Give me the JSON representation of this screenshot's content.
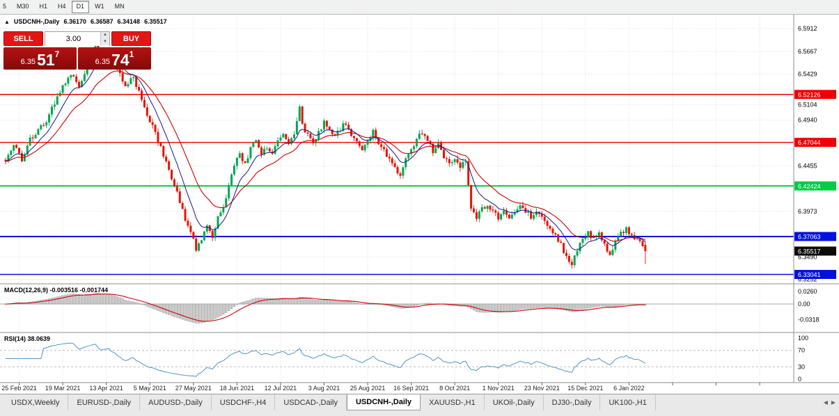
{
  "toolbar": {
    "timeframes": [
      {
        "label": "5",
        "active": false
      },
      {
        "label": "M30",
        "active": false
      },
      {
        "label": "H1",
        "active": false
      },
      {
        "label": "H4",
        "active": false
      },
      {
        "label": "D1",
        "active": true
      },
      {
        "label": "W1",
        "active": false
      },
      {
        "label": "MN",
        "active": false
      }
    ]
  },
  "chart_header": {
    "collapse_icon": "▲",
    "symbol": "USDCNH-,Daily",
    "open": "6.36170",
    "high": "6.36587",
    "low": "6.34148",
    "close": "6.35517"
  },
  "trade_panel": {
    "sell_label": "SELL",
    "buy_label": "BUY",
    "volume": "3.00",
    "sell_price": {
      "small": "6.35",
      "big": "51",
      "sup": "7"
    },
    "buy_price": {
      "small": "6.35",
      "big": "74",
      "sup": "1"
    }
  },
  "indicators": {
    "macd_label": "MACD(12,26,9) -0.003516 -0.001744",
    "rsi_label": "RSI(14) 38.0639"
  },
  "tabs": {
    "items": [
      "USDX,Weekly",
      "EURUSD-,Daily",
      "AUDUSD-,Daily",
      "USDCHF-,H4",
      "USDCAD-,Daily",
      "USDCNH-,Daily",
      "XAUUSD-,H1",
      "UKOil-,Daily",
      "DJ30-,Daily",
      "UK100-,H1"
    ],
    "active_index": 5,
    "scroll_left_icon": "◀",
    "scroll_right_icon": "▶"
  },
  "chart_data": {
    "type": "candlestick",
    "symbol": "USDCNH",
    "timeframe": "Daily",
    "title": "USDCNH-,Daily",
    "price_range": {
      "top": 6.6,
      "bottom": 6.3234
    },
    "candles_n": 236,
    "last_candle": {
      "o": 6.3617,
      "h": 6.36587,
      "l": 6.34148,
      "c": 6.35517
    },
    "price_waypoints": [
      [
        0,
        6.452
      ],
      [
        3,
        6.468
      ],
      [
        6,
        6.452
      ],
      [
        9,
        6.475
      ],
      [
        12,
        6.483
      ],
      [
        15,
        6.492
      ],
      [
        18,
        6.512
      ],
      [
        21,
        6.53
      ],
      [
        24,
        6.543
      ],
      [
        27,
        6.528
      ],
      [
        30,
        6.553
      ],
      [
        33,
        6.572
      ],
      [
        35,
        6.558
      ],
      [
        38,
        6.568
      ],
      [
        41,
        6.548
      ],
      [
        44,
        6.532
      ],
      [
        47,
        6.54
      ],
      [
        50,
        6.514
      ],
      [
        53,
        6.494
      ],
      [
        56,
        6.472
      ],
      [
        59,
        6.45
      ],
      [
        62,
        6.426
      ],
      [
        64,
        6.406
      ],
      [
        66,
        6.39
      ],
      [
        68,
        6.375
      ],
      [
        70,
        6.358
      ],
      [
        72,
        6.366
      ],
      [
        74,
        6.381
      ],
      [
        76,
        6.371
      ],
      [
        78,
        6.39
      ],
      [
        80,
        6.403
      ],
      [
        82,
        6.423
      ],
      [
        84,
        6.446
      ],
      [
        86,
        6.458
      ],
      [
        88,
        6.448
      ],
      [
        90,
        6.463
      ],
      [
        92,
        6.473
      ],
      [
        94,
        6.458
      ],
      [
        96,
        6.466
      ],
      [
        98,
        6.459
      ],
      [
        100,
        6.47
      ],
      [
        102,
        6.478
      ],
      [
        104,
        6.467
      ],
      [
        106,
        6.481
      ],
      [
        108,
        6.509
      ],
      [
        109,
        6.489
      ],
      [
        111,
        6.478
      ],
      [
        113,
        6.467
      ],
      [
        115,
        6.48
      ],
      [
        117,
        6.493
      ],
      [
        119,
        6.484
      ],
      [
        121,
        6.476
      ],
      [
        123,
        6.485
      ],
      [
        125,
        6.492
      ],
      [
        127,
        6.48
      ],
      [
        129,
        6.471
      ],
      [
        131,
        6.463
      ],
      [
        133,
        6.472
      ],
      [
        135,
        6.481
      ],
      [
        137,
        6.471
      ],
      [
        139,
        6.461
      ],
      [
        141,
        6.451
      ],
      [
        143,
        6.443
      ],
      [
        145,
        6.436
      ],
      [
        147,
        6.453
      ],
      [
        149,
        6.464
      ],
      [
        151,
        6.473
      ],
      [
        153,
        6.481
      ],
      [
        155,
        6.472
      ],
      [
        157,
        6.462
      ],
      [
        159,
        6.47
      ],
      [
        161,
        6.455
      ],
      [
        163,
        6.447
      ],
      [
        165,
        6.453
      ],
      [
        167,
        6.445
      ],
      [
        169,
        6.45
      ],
      [
        170,
        6.427
      ],
      [
        171,
        6.401
      ],
      [
        173,
        6.392
      ],
      [
        175,
        6.399
      ],
      [
        177,
        6.406
      ],
      [
        179,
        6.398
      ],
      [
        181,
        6.391
      ],
      [
        183,
        6.399
      ],
      [
        185,
        6.387
      ],
      [
        187,
        6.396
      ],
      [
        189,
        6.404
      ],
      [
        191,
        6.398
      ],
      [
        193,
        6.391
      ],
      [
        195,
        6.399
      ],
      [
        197,
        6.391
      ],
      [
        199,
        6.384
      ],
      [
        201,
        6.377
      ],
      [
        203,
        6.368
      ],
      [
        205,
        6.356
      ],
      [
        207,
        6.345
      ],
      [
        208,
        6.341
      ],
      [
        210,
        6.357
      ],
      [
        212,
        6.369
      ],
      [
        214,
        6.374
      ],
      [
        216,
        6.368
      ],
      [
        218,
        6.374
      ],
      [
        220,
        6.363
      ],
      [
        222,
        6.351
      ],
      [
        224,
        6.364
      ],
      [
        226,
        6.374
      ],
      [
        228,
        6.38
      ],
      [
        230,
        6.372
      ],
      [
        232,
        6.368
      ],
      [
        234,
        6.358
      ],
      [
        235,
        6.3552
      ]
    ],
    "y_axis_labels": [
      {
        "text": "6.5912",
        "value": 6.5912
      },
      {
        "text": "6.5667",
        "value": 6.5667
      },
      {
        "text": "6.5429",
        "value": 6.5429
      },
      {
        "text": "6.5104",
        "value": 6.5104
      },
      {
        "text": "6.4940",
        "value": 6.494
      },
      {
        "text": "6.4455",
        "value": 6.4455
      },
      {
        "text": "6.3973",
        "value": 6.3973
      },
      {
        "text": "6.3490",
        "value": 6.349
      },
      {
        "text": "6.3252",
        "value": 6.3252
      }
    ],
    "levels": [
      {
        "label": "6.52126",
        "value": 6.52126,
        "color": "#ee0000",
        "width": 1.4
      },
      {
        "label": "6.47044",
        "value": 6.47044,
        "color": "#ee0000",
        "width": 1.4
      },
      {
        "label": "6.42424",
        "value": 6.42424,
        "color": "#00cc44",
        "width": 2
      },
      {
        "label": "6.37063",
        "value": 6.37063,
        "color": "#0011dd",
        "width": 2
      },
      {
        "label": "6.33041",
        "value": 6.33041,
        "color": "#0011dd",
        "width": 1.6
      }
    ],
    "current_price": {
      "label": "6.35517",
      "value": 6.35517,
      "color": "#0b0b0b"
    },
    "x_labels": {
      "first_index": 5,
      "step": 16,
      "labels": [
        "25 Feb 2021",
        "19 Mar 2021",
        "13 Apr 2021",
        "5 May 2021",
        "27 May 2021",
        "18 Jun 2021",
        "12 Jul 2021",
        "3 Aug 2021",
        "25 Aug 2021",
        "16 Sep 2021",
        "8 Oct 2021",
        "1 Nov 2021",
        "23 Nov 2021",
        "15 Dec 2021",
        "6 Jan 2022"
      ]
    },
    "macd": {
      "params": "12,26,9",
      "value": "-0.003516",
      "signal": "-0.001744",
      "axis_labels": [
        {
          "text": "0.0260",
          "value": 0.026
        },
        {
          "text": "0.00",
          "value": 0
        },
        {
          "text": "-0.0318",
          "value": -0.0318
        }
      ]
    },
    "rsi": {
      "period": 14,
      "value": "38.0639",
      "axis_labels": [
        {
          "text": "100",
          "value": 100
        },
        {
          "text": "70",
          "value": 70
        },
        {
          "text": "30",
          "value": 30
        },
        {
          "text": "0",
          "value": 0
        }
      ],
      "dashed_levels": [
        70,
        30
      ],
      "color": "#4a96c8"
    },
    "colors": {
      "up": "#00a650",
      "down": "#e41400",
      "ma_fast": "#16168c",
      "ma_slow": "#cc0000"
    }
  }
}
